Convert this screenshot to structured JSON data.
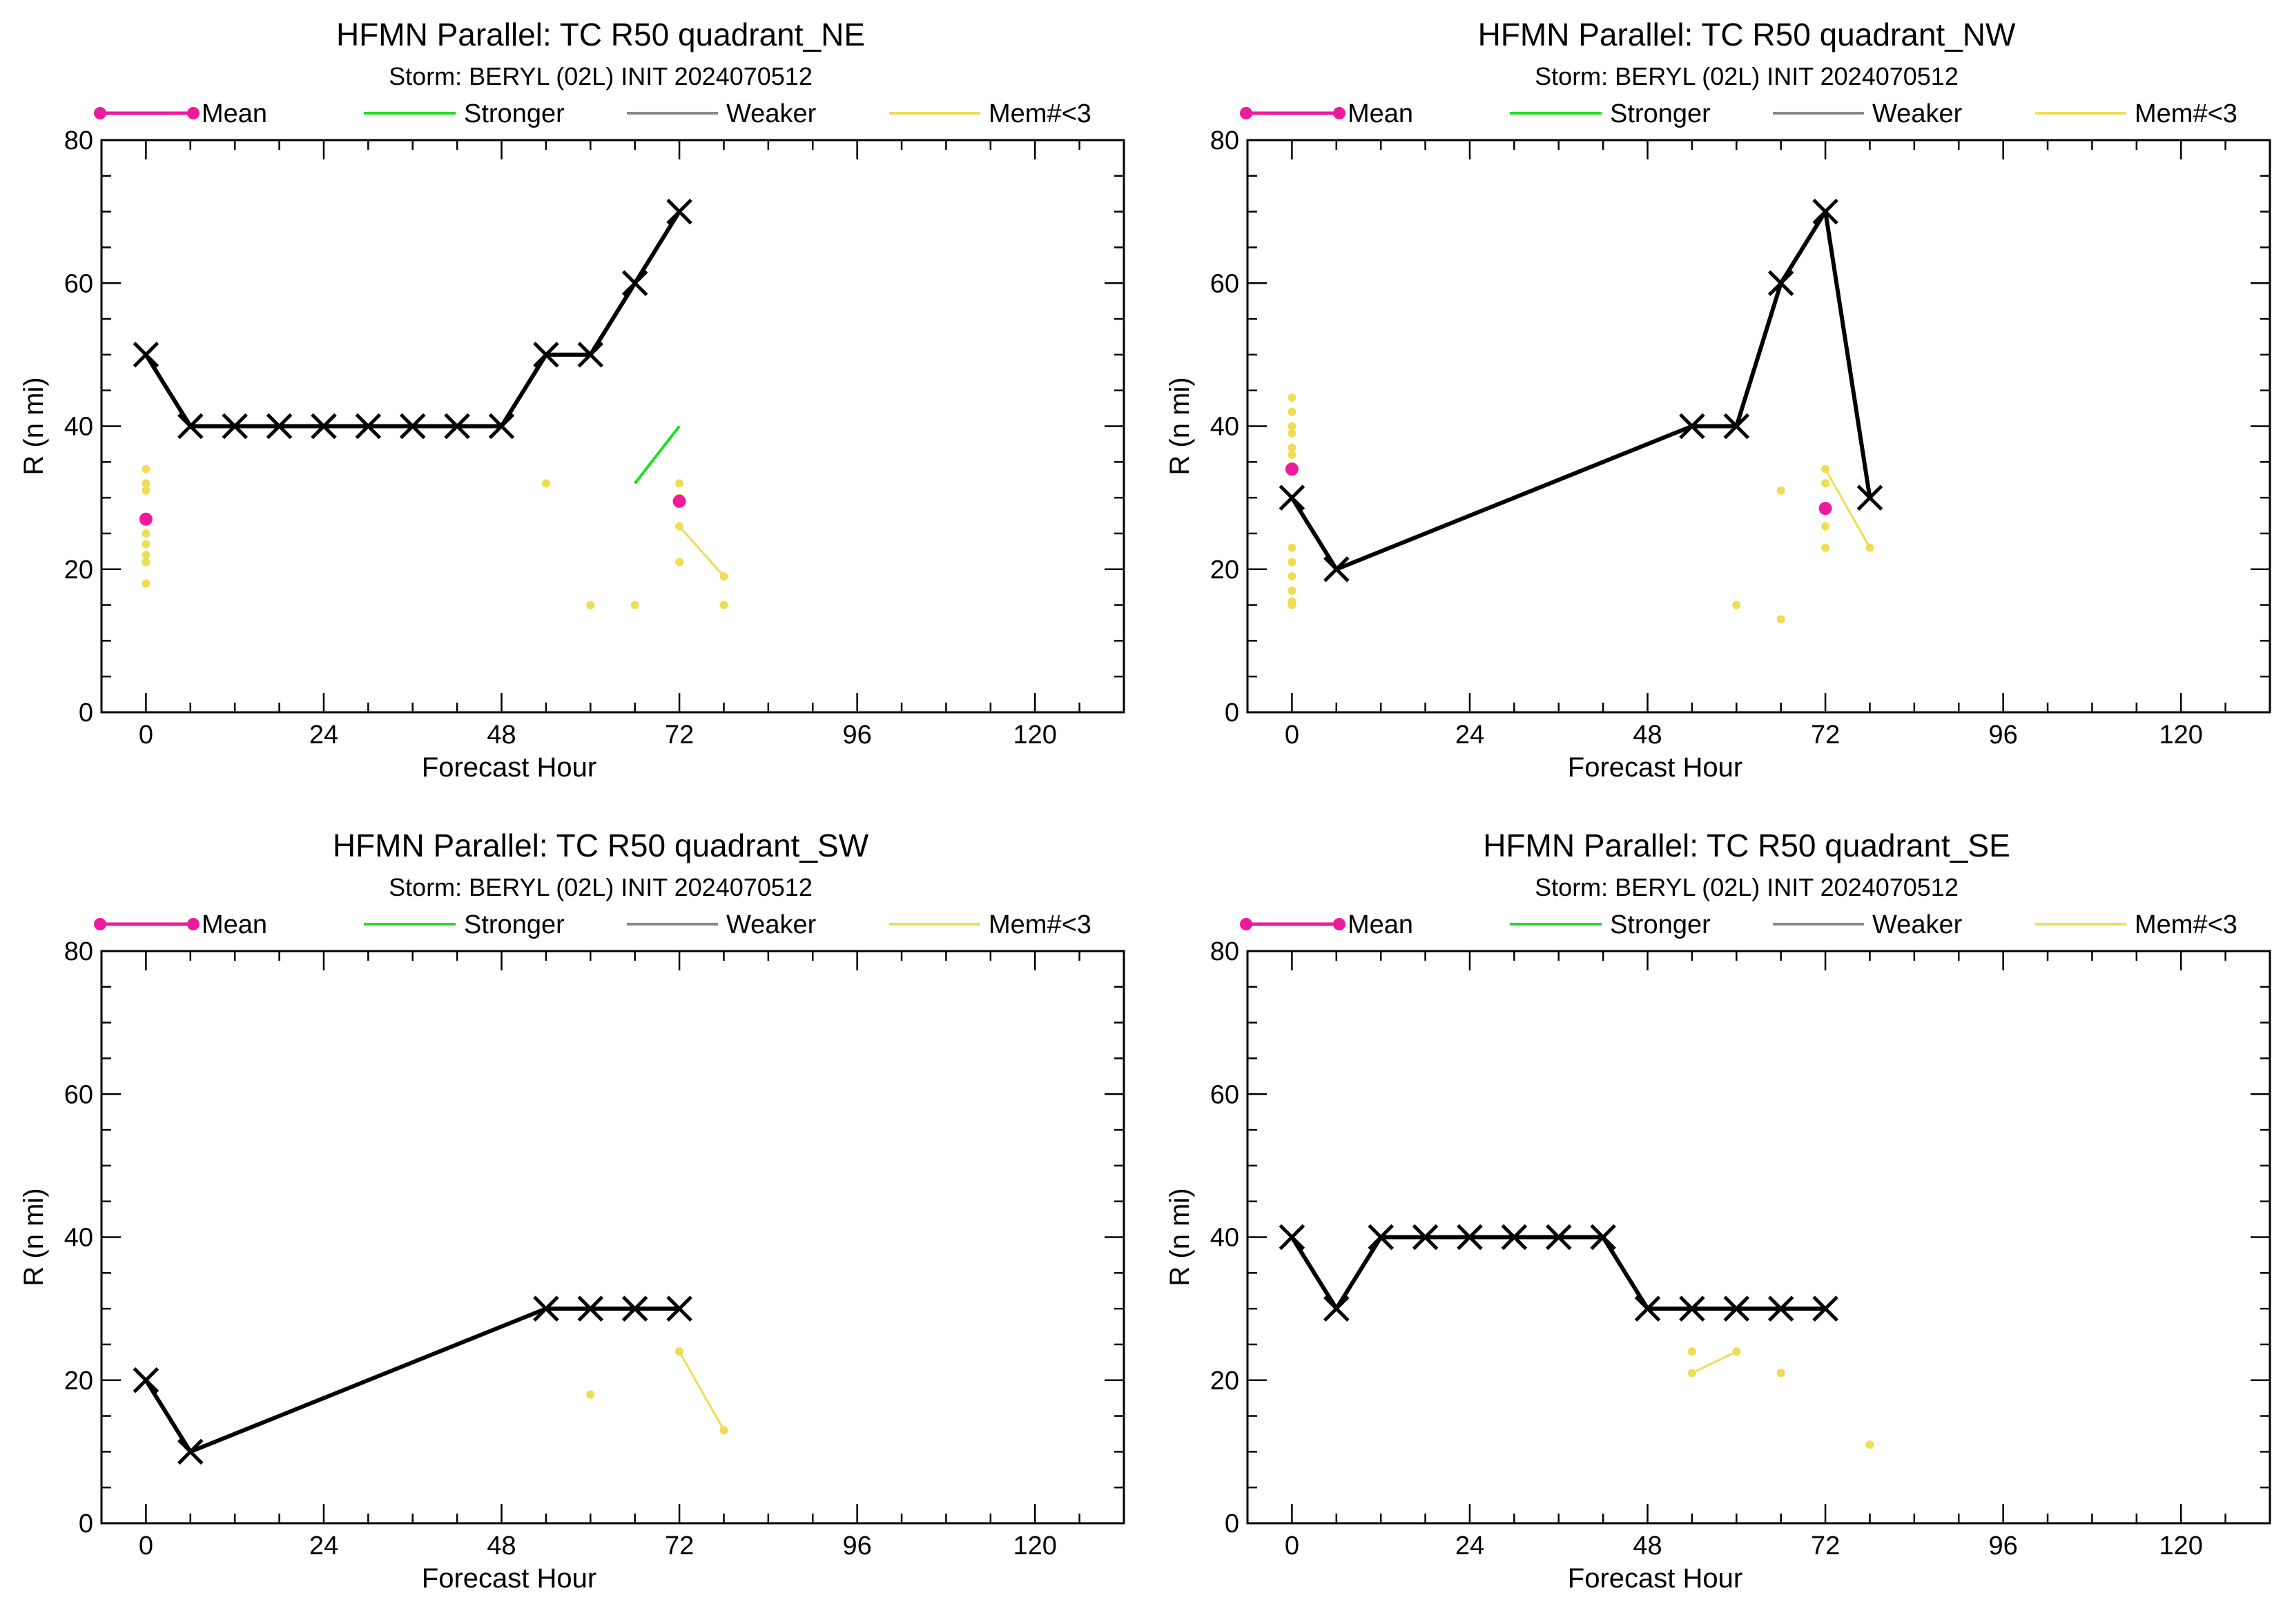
{
  "legend": {
    "mean": "Mean",
    "stronger": "Stronger",
    "weaker": "Weaker",
    "members": "Mem#<3"
  },
  "colors": {
    "mean": "#ee1a9e",
    "stronger": "#22dd22",
    "weaker": "#888888",
    "members": "#eedd55",
    "consensus": "#000000"
  },
  "chart_data": [
    {
      "type": "line",
      "title": "HFMN Parallel: TC  R50 quadrant_NE",
      "subtitle": "Storm: BERYL (02L) INIT 2024070512",
      "xlabel": "Forecast Hour",
      "ylabel": "R (n mi)",
      "xlim": [
        -6,
        132
      ],
      "ylim": [
        0,
        80
      ],
      "xticks": [
        0,
        24,
        48,
        72,
        96,
        120
      ],
      "yticks": [
        0,
        20,
        40,
        60,
        80
      ],
      "legend_position": "top",
      "consensus": [
        [
          0,
          50
        ],
        [
          6,
          40
        ],
        [
          12,
          40
        ],
        [
          18,
          40
        ],
        [
          24,
          40
        ],
        [
          30,
          40
        ],
        [
          36,
          40
        ],
        [
          42,
          40
        ],
        [
          48,
          40
        ],
        [
          54,
          50
        ],
        [
          60,
          50
        ],
        [
          66,
          60
        ],
        [
          72,
          70
        ]
      ],
      "mean_points": [
        [
          0,
          27
        ],
        [
          72,
          29.5
        ]
      ],
      "member_points": [
        [
          0,
          34
        ],
        [
          0,
          32
        ],
        [
          0,
          31
        ],
        [
          0,
          27
        ],
        [
          0,
          25
        ],
        [
          0,
          23.5
        ],
        [
          0,
          22
        ],
        [
          0,
          21
        ],
        [
          0,
          18
        ],
        [
          54,
          32
        ],
        [
          60,
          15
        ],
        [
          66,
          15
        ],
        [
          72,
          32
        ],
        [
          72,
          30
        ],
        [
          72,
          26
        ],
        [
          72,
          21
        ],
        [
          78,
          19
        ],
        [
          78,
          15
        ]
      ],
      "member_lines": [
        [
          [
            72,
            26
          ],
          [
            78,
            19
          ]
        ]
      ],
      "stronger_lines": [
        [
          [
            66,
            32
          ],
          [
            72,
            40
          ]
        ]
      ]
    },
    {
      "type": "line",
      "title": "HFMN Parallel: TC  R50 quadrant_NW",
      "subtitle": "Storm: BERYL (02L) INIT 2024070512",
      "xlabel": "Forecast Hour",
      "ylabel": "R (n mi)",
      "xlim": [
        -6,
        132
      ],
      "ylim": [
        0,
        80
      ],
      "xticks": [
        0,
        24,
        48,
        72,
        96,
        120
      ],
      "yticks": [
        0,
        20,
        40,
        60,
        80
      ],
      "legend_position": "top",
      "consensus": [
        [
          0,
          30
        ],
        [
          6,
          20
        ],
        [
          54,
          40
        ],
        [
          60,
          40
        ],
        [
          66,
          60
        ],
        [
          72,
          70
        ],
        [
          78,
          30
        ]
      ],
      "mean_points": [
        [
          0,
          34
        ],
        [
          72,
          28.5
        ]
      ],
      "member_points": [
        [
          0,
          44
        ],
        [
          0,
          42
        ],
        [
          0,
          40
        ],
        [
          0,
          39
        ],
        [
          0,
          37
        ],
        [
          0,
          36
        ],
        [
          0,
          23
        ],
        [
          0,
          21
        ],
        [
          0,
          19
        ],
        [
          0,
          17
        ],
        [
          0,
          15.5
        ],
        [
          0,
          15
        ],
        [
          60,
          15
        ],
        [
          66,
          31
        ],
        [
          66,
          13
        ],
        [
          72,
          34
        ],
        [
          72,
          32
        ],
        [
          72,
          26
        ],
        [
          72,
          23
        ],
        [
          78,
          23
        ]
      ],
      "member_lines": [
        [
          [
            72,
            34
          ],
          [
            78,
            23
          ]
        ]
      ],
      "stronger_lines": []
    },
    {
      "type": "line",
      "title": "HFMN Parallel: TC  R50 quadrant_SW",
      "subtitle": "Storm: BERYL (02L) INIT 2024070512",
      "xlabel": "Forecast Hour",
      "ylabel": "R (n mi)",
      "xlim": [
        -6,
        132
      ],
      "ylim": [
        0,
        80
      ],
      "xticks": [
        0,
        24,
        48,
        72,
        96,
        120
      ],
      "yticks": [
        0,
        20,
        40,
        60,
        80
      ],
      "legend_position": "top",
      "consensus": [
        [
          0,
          20
        ],
        [
          6,
          10
        ],
        [
          54,
          30
        ],
        [
          60,
          30
        ],
        [
          66,
          30
        ],
        [
          72,
          30
        ]
      ],
      "mean_points": [],
      "member_points": [
        [
          60,
          18
        ],
        [
          72,
          24
        ],
        [
          78,
          13
        ]
      ],
      "member_lines": [
        [
          [
            72,
            24
          ],
          [
            78,
            13
          ]
        ]
      ],
      "stronger_lines": []
    },
    {
      "type": "line",
      "title": "HFMN Parallel: TC  R50 quadrant_SE",
      "subtitle": "Storm: BERYL (02L) INIT 2024070512",
      "xlabel": "Forecast Hour",
      "ylabel": "R (n mi)",
      "xlim": [
        -6,
        132
      ],
      "ylim": [
        0,
        80
      ],
      "xticks": [
        0,
        24,
        48,
        72,
        96,
        120
      ],
      "yticks": [
        0,
        20,
        40,
        60,
        80
      ],
      "legend_position": "top",
      "consensus": [
        [
          0,
          40
        ],
        [
          6,
          30
        ],
        [
          12,
          40
        ],
        [
          18,
          40
        ],
        [
          24,
          40
        ],
        [
          30,
          40
        ],
        [
          36,
          40
        ],
        [
          42,
          40
        ],
        [
          48,
          30
        ],
        [
          54,
          30
        ],
        [
          60,
          30
        ],
        [
          66,
          30
        ],
        [
          72,
          30
        ]
      ],
      "mean_points": [],
      "member_points": [
        [
          54,
          24
        ],
        [
          54,
          21
        ],
        [
          60,
          24
        ],
        [
          66,
          21
        ],
        [
          78,
          11
        ]
      ],
      "member_lines": [
        [
          [
            54,
            21
          ],
          [
            60,
            24
          ]
        ]
      ],
      "stronger_lines": []
    }
  ]
}
